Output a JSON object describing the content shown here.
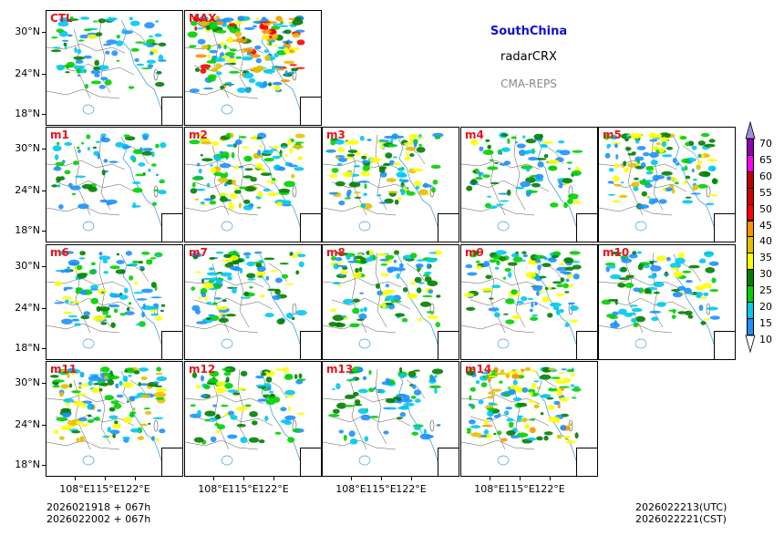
{
  "title": {
    "region": "SouthChina",
    "field": "radarCRX",
    "model": "CMA-REPS"
  },
  "colors": {
    "region": "#1010d0",
    "field": "#000000",
    "model": "#888888",
    "panel_label": "#e8141c"
  },
  "panels": [
    {
      "label": "CTL",
      "intensity": 0.35
    },
    {
      "label": "MAX",
      "intensity": 1.0
    },
    {
      "label": "m1",
      "intensity": 0.25
    },
    {
      "label": "m2",
      "intensity": 0.6
    },
    {
      "label": "m3",
      "intensity": 0.55
    },
    {
      "label": "m4",
      "intensity": 0.35
    },
    {
      "label": "m5",
      "intensity": 0.6
    },
    {
      "label": "m6",
      "intensity": 0.45
    },
    {
      "label": "m7",
      "intensity": 0.45
    },
    {
      "label": "m8",
      "intensity": 0.5
    },
    {
      "label": "m9",
      "intensity": 0.5
    },
    {
      "label": "m10",
      "intensity": 0.4
    },
    {
      "label": "m11",
      "intensity": 0.65
    },
    {
      "label": "m12",
      "intensity": 0.4
    },
    {
      "label": "m13",
      "intensity": 0.3
    },
    {
      "label": "m14",
      "intensity": 0.7
    }
  ],
  "axes": {
    "lat_labels": [
      "30°N",
      "24°N",
      "18°N"
    ],
    "lon_labels": [
      "108°E",
      "115°E",
      "122°E"
    ]
  },
  "footer": {
    "init_line1": "2026021918  +  067h",
    "init_line2": "2026022002  +  067h",
    "valid_utc": "2026022213(UTC)",
    "valid_cst": "2026022221(CST)"
  },
  "colorbar": {
    "levels": [
      "10",
      "15",
      "20",
      "25",
      "30",
      "35",
      "40",
      "45",
      "50",
      "55",
      "60",
      "65",
      "70"
    ],
    "colors": [
      "#ffffff",
      "#1e90ff",
      "#00c8f0",
      "#00d000",
      "#008000",
      "#ffff00",
      "#e6c000",
      "#ff9000",
      "#ff0000",
      "#d00000",
      "#c00000",
      "#ff00f0",
      "#9000b0",
      "#a090e0"
    ]
  }
}
